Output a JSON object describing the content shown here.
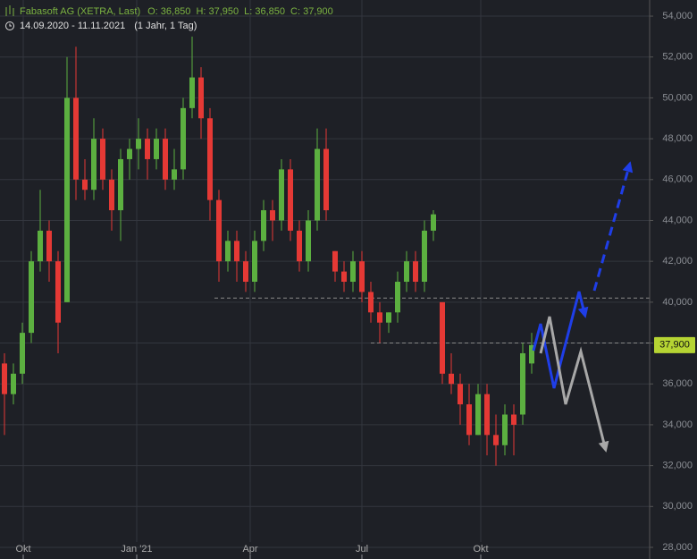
{
  "chart_data": {
    "type": "candlestick",
    "header": {
      "name": "Fabasoft AG (XETRA, Last)",
      "open": "O: 36,850",
      "high": "H: 37,950",
      "low": "L: 36,850",
      "close": "C: 37,900",
      "range": "14.09.2020 - 11.11.2021",
      "period": "(1 Jahr, 1 Tag)"
    },
    "x": [
      0,
      1,
      2,
      3,
      4,
      5,
      6,
      7,
      8,
      9,
      10,
      11,
      12,
      13,
      14,
      15,
      16,
      17,
      18,
      19,
      20,
      21,
      22,
      23,
      24,
      25,
      26,
      27,
      28,
      29,
      30,
      31,
      32,
      33,
      34,
      35,
      36,
      37,
      38,
      39,
      40,
      41,
      42,
      43,
      44,
      45,
      46,
      47,
      48,
      49,
      50,
      51,
      52,
      53,
      54,
      55,
      56,
      57,
      58,
      59
    ],
    "open": [
      37000,
      35500,
      36500,
      38500,
      42000,
      43500,
      42000,
      40000,
      50000,
      46000,
      45500,
      48000,
      46000,
      44500,
      47000,
      47500,
      48000,
      47000,
      48000,
      46000,
      46500,
      49500,
      51000,
      49000,
      45000,
      42000,
      43000,
      42000,
      41000,
      43000,
      44500,
      44000,
      46500,
      43500,
      42000,
      44000,
      47500,
      42500,
      41500,
      41000,
      42000,
      40500,
      39500,
      39000,
      39500,
      41000,
      42000,
      41000,
      43500,
      40000,
      36500,
      36000,
      35000,
      33500,
      35500,
      33500,
      33000,
      34500,
      34500,
      37000
    ],
    "high": [
      37500,
      37000,
      39000,
      42500,
      45500,
      44000,
      42500,
      52000,
      52500,
      47000,
      49000,
      48500,
      46500,
      47500,
      48000,
      49000,
      48500,
      48500,
      48500,
      47500,
      50000,
      53000,
      51500,
      49500,
      45500,
      43500,
      43500,
      42500,
      43500,
      45000,
      45000,
      47000,
      47000,
      44000,
      44500,
      48500,
      48500,
      42500,
      42000,
      42500,
      42500,
      41000,
      40000,
      39500,
      41500,
      42500,
      42500,
      44000,
      44500,
      40000,
      37500,
      36500,
      36000,
      36000,
      36000,
      34500,
      35000,
      35000,
      38000,
      38500
    ],
    "low": [
      33500,
      35000,
      36000,
      38000,
      41500,
      41000,
      37500,
      40000,
      45000,
      45000,
      45000,
      45500,
      43500,
      43000,
      46000,
      46500,
      46000,
      46500,
      45500,
      45500,
      46000,
      49000,
      48000,
      44000,
      41000,
      41500,
      41000,
      40500,
      40500,
      42500,
      43000,
      43500,
      43000,
      41500,
      41500,
      43500,
      44000,
      41000,
      40500,
      40500,
      40000,
      39000,
      38000,
      38500,
      39000,
      40500,
      40500,
      40500,
      43000,
      36000,
      35500,
      34000,
      33000,
      33500,
      32500,
      32000,
      32500,
      32500,
      34000,
      36500
    ],
    "close": [
      35500,
      36500,
      38500,
      42000,
      43500,
      42000,
      39000,
      50000,
      46000,
      45500,
      48000,
      46000,
      44500,
      47000,
      47500,
      48000,
      47000,
      48000,
      46000,
      46500,
      49500,
      51000,
      49000,
      45000,
      42000,
      43000,
      42000,
      41000,
      43000,
      44500,
      44000,
      46500,
      43500,
      42000,
      44000,
      47500,
      44500,
      41500,
      41000,
      42000,
      40500,
      39500,
      39000,
      39500,
      41000,
      42000,
      41000,
      43500,
      44300,
      36500,
      36000,
      35000,
      33500,
      35500,
      33500,
      33000,
      34500,
      34000,
      37500,
      37900
    ],
    "up_color": "#5cb040",
    "down_color": "#e53935",
    "xlim": [
      -0.5,
      72.2
    ],
    "xticks": [
      {
        "value": 2.1,
        "label": "Okt"
      },
      {
        "value": 14.8,
        "label": "Jan '21"
      },
      {
        "value": 27.5,
        "label": "Apr"
      },
      {
        "value": 40,
        "label": "Jul"
      },
      {
        "value": 53.3,
        "label": "Okt"
      }
    ],
    "ylim": [
      27430,
      54790
    ],
    "yticks": [
      {
        "value": 28000,
        "label": "28,000"
      },
      {
        "value": 30000,
        "label": "30,000"
      },
      {
        "value": 32000,
        "label": "32,000"
      },
      {
        "value": 34000,
        "label": "34,000"
      },
      {
        "value": 36000,
        "label": "36,000"
      },
      {
        "value": 38000,
        "label": "38,000"
      },
      {
        "value": 40000,
        "label": "40,000"
      },
      {
        "value": 42000,
        "label": "42,000"
      },
      {
        "value": 44000,
        "label": "44,000"
      },
      {
        "value": 46000,
        "label": "46,000"
      },
      {
        "value": 48000,
        "label": "48,000"
      },
      {
        "value": 50000,
        "label": "50,000"
      },
      {
        "value": 52000,
        "label": "52,000"
      },
      {
        "value": 54000,
        "label": "54,000"
      }
    ],
    "levels": [
      40200,
      38000
    ],
    "last_price": {
      "value": 37900,
      "label": "37,900"
    },
    "grid": true
  }
}
